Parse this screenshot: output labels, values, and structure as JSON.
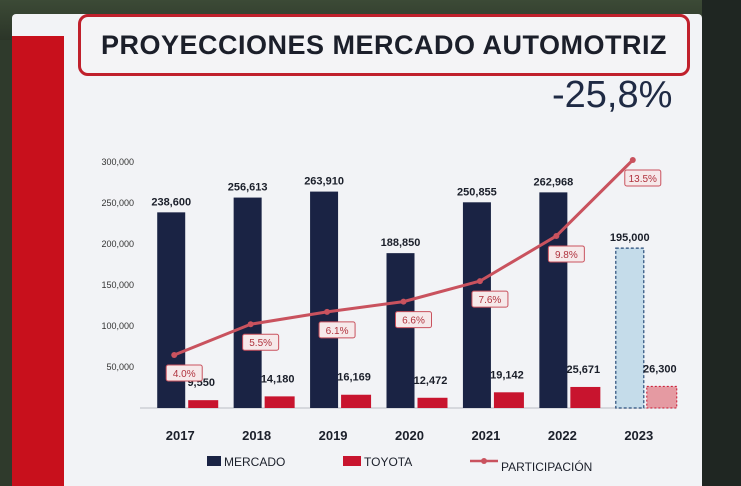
{
  "header": {
    "title": "PROYECCIONES MERCADO AUTOMOTRIZ",
    "change": "-25,8%"
  },
  "colors": {
    "mercado": "#1a2344",
    "toyota": "#c8142e",
    "participacion": "#c9525e",
    "projected_fill": "#c5dcea",
    "projected_border": "#2a4d7a"
  },
  "chart_data": {
    "type": "bar",
    "categories": [
      "2017",
      "2018",
      "2019",
      "2020",
      "2021",
      "2022",
      "2023"
    ],
    "series": [
      {
        "name": "MERCADO",
        "values": [
          238600,
          256613,
          263910,
          188850,
          250855,
          262968,
          195000
        ],
        "labels": [
          "238,600",
          "256,613",
          "263,910",
          "188,850",
          "250,855",
          "262,968",
          "195,000"
        ]
      },
      {
        "name": "TOYOTA",
        "values": [
          9550,
          14180,
          16169,
          12472,
          19142,
          25671,
          26300
        ],
        "labels": [
          "9,550",
          "14,180",
          "16,169",
          "12,472",
          "19,142",
          "25,671",
          "26,300"
        ]
      },
      {
        "name": "PARTICIPACIÓN",
        "type": "line",
        "values": [
          4.0,
          5.5,
          6.1,
          6.6,
          7.6,
          9.8,
          13.5
        ],
        "labels": [
          "4.0%",
          "5.5%",
          "6.1%",
          "6.6%",
          "7.6%",
          "9.8%",
          "13.5%"
        ]
      }
    ],
    "projected_category": "2023",
    "ylim": [
      0,
      300000
    ],
    "yticks": [
      0,
      50000,
      100000,
      150000,
      200000,
      250000,
      300000
    ],
    "ytick_labels": [
      "",
      "50,000",
      "100,000",
      "150,000",
      "200,000",
      "250,000",
      "300,000"
    ],
    "line_ylim": [
      0,
      15
    ],
    "legend": {
      "position": "bottom",
      "items": [
        "MERCADO",
        "TOYOTA",
        "PARTICIPACIÓN"
      ]
    }
  }
}
